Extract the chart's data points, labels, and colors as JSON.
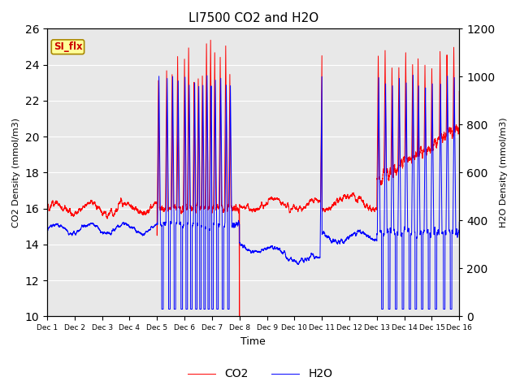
{
  "title": "LI7500 CO2 and H2O",
  "xlabel": "Time",
  "ylabel_left": "CO2 Density (mmol/m3)",
  "ylabel_right": "H2O Density (mmol/m3)",
  "ylim_left": [
    10,
    26
  ],
  "ylim_right": [
    0,
    1200
  ],
  "co2_color": "#ff0000",
  "h2o_color": "#0000ff",
  "co2_linewidth": 0.7,
  "h2o_linewidth": 0.7,
  "bg_color": "#e8e8e8",
  "legend_co2": "CO2",
  "legend_h2o": "H2O",
  "annotation_text": "SI_flx",
  "annotation_bg": "#ffff99",
  "annotation_border": "#aa8800",
  "n_points": 7200,
  "yticks_left": [
    10,
    12,
    14,
    16,
    18,
    20,
    22,
    24,
    26
  ],
  "yticks_right": [
    0,
    200,
    400,
    600,
    800,
    1000,
    1200
  ],
  "xtick_labels": [
    "Dec 1",
    "Dec 2",
    "Dec 3",
    "Dec 4",
    "Dec 5",
    "Dec 6",
    "Dec 7",
    "Dec 8",
    "Dec 9",
    "Dec 10",
    "Dec 11",
    "Dec 12",
    "Dec 13",
    "Dec 14",
    "Dec 15",
    "Dec 16"
  ]
}
